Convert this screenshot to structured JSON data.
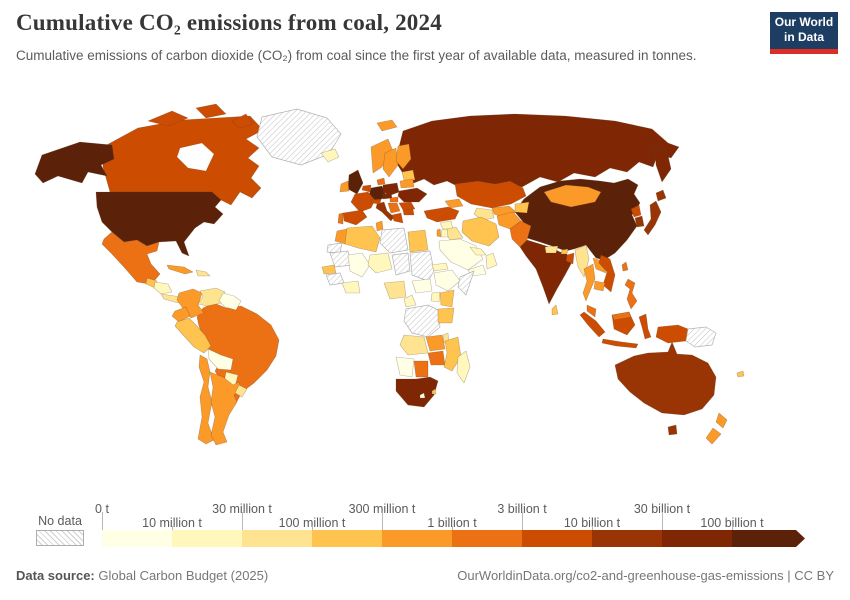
{
  "header": {
    "title": "Cumulative CO₂ emissions from coal, 2024",
    "subtitle": "Cumulative emissions of carbon dioxide (CO₂) from coal since the first year of available data, measured in tonnes.",
    "logo_line1": "Our World",
    "logo_line2": "in Data"
  },
  "colors": {
    "logo_bg": "#1d3d63",
    "logo_accent": "#dc2e27",
    "title_text": "#373737",
    "subtitle_text": "#5b5b5b",
    "no_data_hatch": "#cfcfcf"
  },
  "legend": {
    "no_data_label": "No data",
    "tick_labels": [
      "0 t",
      "10 million t",
      "30 million t",
      "100 million t",
      "300 million t",
      "1 billion t",
      "3 billion t",
      "10 billion t",
      "30 billion t",
      "100 billion t"
    ]
  },
  "footer": {
    "source_label": "Data source:",
    "source_value": "Global Carbon Budget (2025)",
    "link": "OurWorldinData.org/co2-and-greenhouse-gas-emissions",
    "separator": "|",
    "license": "CC BY"
  },
  "chart_data": {
    "type": "heatmap",
    "subtype": "world-choropleth",
    "title": "Cumulative CO₂ emissions from coal, 2024",
    "unit": "tonnes",
    "scale": "log",
    "legend_position": "bottom",
    "bins": [
      {
        "label": "0 t – 10 million t",
        "color": "#FFFFE5"
      },
      {
        "label": "10 – 30 million t",
        "color": "#FFF7BC"
      },
      {
        "label": "30 – 100 million t",
        "color": "#FEE391"
      },
      {
        "label": "100 – 300 million t",
        "color": "#FEC44F"
      },
      {
        "label": "300 million – 1 billion t",
        "color": "#FB9A29"
      },
      {
        "label": "1 – 3 billion t",
        "color": "#EC7014"
      },
      {
        "label": "3 – 10 billion t",
        "color": "#CC4C02"
      },
      {
        "label": "10 – 30 billion t",
        "color": "#993404"
      },
      {
        "label": "30 – 100 billion t",
        "color": "#7F2704"
      },
      {
        "label": "100+ billion t",
        "color": "#5C2109"
      }
    ],
    "no_data": {
      "label": "No data",
      "pattern": "hatched"
    },
    "countries": [
      {
        "id": "united-states",
        "name": "United States",
        "bin": 10
      },
      {
        "id": "canada",
        "name": "Canada",
        "bin": 7
      },
      {
        "id": "greenland",
        "name": "Greenland",
        "bin": "no-data"
      },
      {
        "id": "mexico",
        "name": "Mexico",
        "bin": 6
      },
      {
        "id": "guatemala",
        "name": "Guatemala",
        "bin": 4
      },
      {
        "id": "honduras-nicaragua",
        "name": "Honduras / Nicaragua",
        "bin": 2
      },
      {
        "id": "costa-rica-panama",
        "name": "Costa Rica / Panama",
        "bin": 3
      },
      {
        "id": "cuba",
        "name": "Cuba",
        "bin": 5
      },
      {
        "id": "hispaniola",
        "name": "Dominican Republic / Haiti",
        "bin": 3
      },
      {
        "id": "colombia",
        "name": "Colombia",
        "bin": 5
      },
      {
        "id": "venezuela",
        "name": "Venezuela",
        "bin": 3
      },
      {
        "id": "guyanas",
        "name": "Guyana / Suriname",
        "bin": 1
      },
      {
        "id": "ecuador",
        "name": "Ecuador",
        "bin": 5
      },
      {
        "id": "peru",
        "name": "Peru",
        "bin": 4
      },
      {
        "id": "brazil",
        "name": "Brazil",
        "bin": 6
      },
      {
        "id": "bolivia",
        "name": "Bolivia",
        "bin": 1
      },
      {
        "id": "paraguay",
        "name": "Paraguay",
        "bin": 2
      },
      {
        "id": "chile",
        "name": "Chile",
        "bin": 5
      },
      {
        "id": "argentina",
        "name": "Argentina",
        "bin": 5
      },
      {
        "id": "uruguay",
        "name": "Uruguay",
        "bin": 3
      },
      {
        "id": "iceland",
        "name": "Iceland",
        "bin": 2
      },
      {
        "id": "united-kingdom",
        "name": "United Kingdom",
        "bin": 10
      },
      {
        "id": "ireland",
        "name": "Ireland",
        "bin": 5
      },
      {
        "id": "norway",
        "name": "Norway",
        "bin": 5
      },
      {
        "id": "svalbard",
        "name": "Svalbard",
        "bin": 5
      },
      {
        "id": "sweden",
        "name": "Sweden",
        "bin": 5
      },
      {
        "id": "finland",
        "name": "Finland",
        "bin": 5
      },
      {
        "id": "denmark",
        "name": "Denmark",
        "bin": 6
      },
      {
        "id": "baltics",
        "name": "Baltic states",
        "bin": 4
      },
      {
        "id": "germany",
        "name": "Germany",
        "bin": 10
      },
      {
        "id": "benelux",
        "name": "Netherlands / Belgium",
        "bin": 7
      },
      {
        "id": "france",
        "name": "France",
        "bin": 7
      },
      {
        "id": "spain",
        "name": "Spain",
        "bin": 7
      },
      {
        "id": "portugal",
        "name": "Portugal",
        "bin": 6
      },
      {
        "id": "italy",
        "name": "Italy",
        "bin": 8
      },
      {
        "id": "alpine",
        "name": "Switzerland / Austria",
        "bin": 7
      },
      {
        "id": "czechia",
        "name": "Czechia",
        "bin": 9
      },
      {
        "id": "poland",
        "name": "Poland",
        "bin": 9
      },
      {
        "id": "belarus",
        "name": "Belarus",
        "bin": 5
      },
      {
        "id": "ukraine",
        "name": "Ukraine",
        "bin": 9
      },
      {
        "id": "romania",
        "name": "Romania",
        "bin": 7
      },
      {
        "id": "balkans",
        "name": "Western Balkans",
        "bin": 6
      },
      {
        "id": "bulgaria",
        "name": "Bulgaria",
        "bin": 7
      },
      {
        "id": "greece",
        "name": "Greece",
        "bin": 7
      },
      {
        "id": "hungary",
        "name": "Hungary",
        "bin": 6
      },
      {
        "id": "russia",
        "name": "Russia",
        "bin": 9
      },
      {
        "id": "kazakhstan",
        "name": "Kazakhstan",
        "bin": 7
      },
      {
        "id": "uzbekistan",
        "name": "Uzbekistan",
        "bin": 5
      },
      {
        "id": "turkmenistan",
        "name": "Turkmenistan",
        "bin": 3
      },
      {
        "id": "kyrgyzstan-tajikistan",
        "name": "Kyrgyzstan / Tajikistan",
        "bin": 4
      },
      {
        "id": "caucasus",
        "name": "Caucasus states",
        "bin": 5
      },
      {
        "id": "turkey",
        "name": "Turkey",
        "bin": 7
      },
      {
        "id": "syria",
        "name": "Syria",
        "bin": 2
      },
      {
        "id": "iraq",
        "name": "Iraq",
        "bin": 3
      },
      {
        "id": "iran",
        "name": "Iran",
        "bin": 4
      },
      {
        "id": "saudi-arabia",
        "name": "Saudi Arabia",
        "bin": 1
      },
      {
        "id": "yemen",
        "name": "Yemen",
        "bin": 1
      },
      {
        "id": "oman",
        "name": "Oman",
        "bin": 2
      },
      {
        "id": "gulf-states",
        "name": "Gulf states",
        "bin": 2
      },
      {
        "id": "israel",
        "name": "Israel",
        "bin": 5
      },
      {
        "id": "jordan",
        "name": "Jordan",
        "bin": 2
      },
      {
        "id": "afghanistan",
        "name": "Afghanistan",
        "bin": 5
      },
      {
        "id": "pakistan",
        "name": "Pakistan",
        "bin": 6
      },
      {
        "id": "india",
        "name": "India",
        "bin": 9
      },
      {
        "id": "nepal",
        "name": "Nepal",
        "bin": 3
      },
      {
        "id": "bhutan",
        "name": "Bhutan",
        "bin": 4
      },
      {
        "id": "bangladesh",
        "name": "Bangladesh",
        "bin": 7
      },
      {
        "id": "sri-lanka",
        "name": "Sri Lanka",
        "bin": 4
      },
      {
        "id": "myanmar",
        "name": "Myanmar",
        "bin": 3
      },
      {
        "id": "thailand",
        "name": "Thailand",
        "bin": 5
      },
      {
        "id": "laos",
        "name": "Laos",
        "bin": 5
      },
      {
        "id": "vietnam",
        "name": "Vietnam",
        "bin": 7
      },
      {
        "id": "cambodia",
        "name": "Cambodia",
        "bin": 5
      },
      {
        "id": "malaysia",
        "name": "Malaysia",
        "bin": 6
      },
      {
        "id": "china",
        "name": "China",
        "bin": 10
      },
      {
        "id": "mongolia",
        "name": "Mongolia",
        "bin": 5
      },
      {
        "id": "north-korea",
        "name": "North Korea",
        "bin": 7
      },
      {
        "id": "south-korea",
        "name": "South Korea",
        "bin": 8
      },
      {
        "id": "japan",
        "name": "Japan",
        "bin": 8
      },
      {
        "id": "taiwan",
        "name": "Taiwan",
        "bin": 6
      },
      {
        "id": "philippines",
        "name": "Philippines",
        "bin": 6
      },
      {
        "id": "indonesia",
        "name": "Indonesia",
        "bin": 7
      },
      {
        "id": "papua-new-guinea",
        "name": "Papua New Guinea",
        "bin": "no-data"
      },
      {
        "id": "australia",
        "name": "Australia",
        "bin": 8
      },
      {
        "id": "new-zealand",
        "name": "New Zealand",
        "bin": 5
      },
      {
        "id": "new-caledonia",
        "name": "New Caledonia",
        "bin": 4
      },
      {
        "id": "morocco",
        "name": "Morocco",
        "bin": 5
      },
      {
        "id": "western-sahara",
        "name": "Western Sahara",
        "bin": "no-data"
      },
      {
        "id": "algeria",
        "name": "Algeria",
        "bin": 4
      },
      {
        "id": "tunisia",
        "name": "Tunisia",
        "bin": 5
      },
      {
        "id": "libya",
        "name": "Libya",
        "bin": "no-data"
      },
      {
        "id": "egypt",
        "name": "Egypt",
        "bin": 4
      },
      {
        "id": "mauritania",
        "name": "Mauritania",
        "bin": "no-data"
      },
      {
        "id": "mali",
        "name": "Mali",
        "bin": 1
      },
      {
        "id": "niger",
        "name": "Niger",
        "bin": 2
      },
      {
        "id": "chad",
        "name": "Chad",
        "bin": "no-data"
      },
      {
        "id": "sudan",
        "name": "Sudan",
        "bin": "no-data"
      },
      {
        "id": "senegal",
        "name": "Senegal",
        "bin": 4
      },
      {
        "id": "guinea-region",
        "name": "Guinea region",
        "bin": "no-data"
      },
      {
        "id": "ivory-coast-ghana",
        "name": "Côte d'Ivoire / Ghana",
        "bin": 2
      },
      {
        "id": "nigeria",
        "name": "Nigeria",
        "bin": 3
      },
      {
        "id": "cameroon",
        "name": "Cameroon",
        "bin": 2
      },
      {
        "id": "central-african-republic",
        "name": "Central African Republic",
        "bin": 1
      },
      {
        "id": "ethiopia",
        "name": "Ethiopia",
        "bin": 1
      },
      {
        "id": "eritrea",
        "name": "Eritrea / Djibouti",
        "bin": 2
      },
      {
        "id": "somalia",
        "name": "Somalia",
        "bin": "no-data"
      },
      {
        "id": "kenya",
        "name": "Kenya",
        "bin": 4
      },
      {
        "id": "uganda",
        "name": "Uganda",
        "bin": 2
      },
      {
        "id": "dr-congo",
        "name": "Democratic Republic of Congo",
        "bin": "no-data"
      },
      {
        "id": "tanzania",
        "name": "Tanzania",
        "bin": 4
      },
      {
        "id": "angola",
        "name": "Angola",
        "bin": 3
      },
      {
        "id": "zambia",
        "name": "Zambia",
        "bin": 5
      },
      {
        "id": "zimbabwe",
        "name": "Zimbabwe",
        "bin": 6
      },
      {
        "id": "mozambique",
        "name": "Mozambique",
        "bin": 4
      },
      {
        "id": "malawi",
        "name": "Malawi",
        "bin": 3
      },
      {
        "id": "madagascar",
        "name": "Madagascar",
        "bin": 2
      },
      {
        "id": "namibia",
        "name": "Namibia",
        "bin": 1
      },
      {
        "id": "botswana",
        "name": "Botswana",
        "bin": 6
      },
      {
        "id": "south-africa",
        "name": "South Africa",
        "bin": 9
      },
      {
        "id": "lesotho",
        "name": "Lesotho",
        "bin": 1
      },
      {
        "id": "eswatini",
        "name": "Eswatini",
        "bin": 4
      }
    ]
  }
}
